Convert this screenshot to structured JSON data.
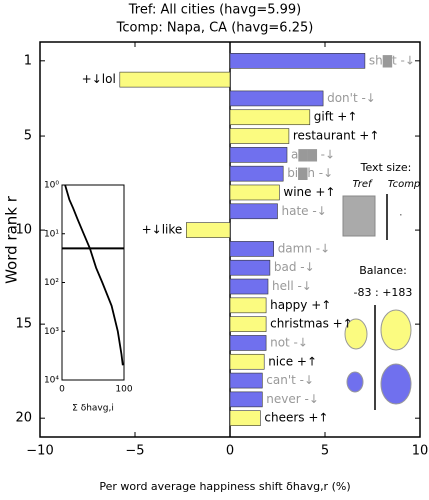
{
  "chart_data": {
    "type": "word-shift",
    "title": "Tref: All cities (havg=5.99)",
    "subtitle": "Tcomp: Napa, CA (havg=6.25)",
    "xlabel": "Per word average happiness shift δhavg,r (%)",
    "ylabel": "Word rank r",
    "categories": [
      1,
      2,
      3,
      4,
      5,
      6,
      7,
      8,
      9,
      10,
      11,
      12,
      13,
      14,
      15,
      16,
      17,
      18,
      19,
      20
    ],
    "word_labels": [
      "sh▇t -↓",
      "+↓lol",
      "don't -↓",
      "gift +↑",
      "restaurant +↑",
      "a▇▇ -↓",
      "bi▇h -↓",
      "wine +↑",
      "hate -↓",
      "+↓like",
      "damn -↓",
      "bad -↓",
      "hell -↓",
      "happy +↑",
      "christmas +↑",
      "not -↓",
      "nice +↑",
      "can't -↓",
      "never -↓",
      "cheers +↑"
    ],
    "values": [
      7.1,
      -5.8,
      4.9,
      4.2,
      3.1,
      3.0,
      2.8,
      2.6,
      2.5,
      -2.3,
      2.3,
      2.1,
      2.0,
      1.9,
      1.9,
      1.9,
      1.8,
      1.7,
      1.7,
      1.6
    ],
    "bar_colors": [
      "#7070ee",
      "#fbfb80",
      "#7070ee",
      "#fbfb80",
      "#fbfb80",
      "#7070ee",
      "#7070ee",
      "#fbfb80",
      "#7070ee",
      "#fbfb80",
      "#7070ee",
      "#7070ee",
      "#7070ee",
      "#fbfb80",
      "#fbfb80",
      "#7070ee",
      "#fbfb80",
      "#7070ee",
      "#7070ee",
      "#fbfb80"
    ],
    "label_colors": [
      "#999",
      "#000",
      "#999",
      "#000",
      "#000",
      "#999",
      "#999",
      "#000",
      "#999",
      "#000",
      "#999",
      "#999",
      "#999",
      "#000",
      "#000",
      "#999",
      "#000",
      "#999",
      "#999",
      "#000"
    ],
    "xlim": [
      -10,
      10
    ],
    "xticks": [
      {
        "value": -10,
        "label": "−10"
      },
      {
        "value": -5,
        "label": "−5"
      },
      0,
      5,
      10
    ],
    "ylim": [
      0,
      21
    ],
    "yticks": [
      1,
      5,
      10,
      15,
      20
    ],
    "text_size": {
      "title": "Text size:",
      "ref": "Tref",
      "comp": "Tcomp"
    },
    "balance": {
      "title": "Balance:",
      "label": "-83 : +183"
    },
    "inset": {
      "type": "line",
      "x": [
        5,
        12,
        18,
        25,
        35,
        45,
        55,
        65,
        80,
        90,
        96,
        98
      ],
      "y": [
        1,
        2,
        3,
        5,
        10,
        20,
        50,
        100,
        300,
        1000,
        3000,
        5000
      ],
      "xlim": [
        0,
        100
      ],
      "ylim": [
        1,
        10000
      ],
      "xticks": [
        0,
        100
      ],
      "yticks": [
        {
          "value": 1,
          "label": "10⁰"
        },
        {
          "value": 10,
          "label": "10¹"
        },
        {
          "value": 100,
          "label": "10²"
        },
        {
          "value": 1000,
          "label": "10³"
        },
        {
          "value": 10000,
          "label": "10⁴"
        }
      ],
      "marker_rank": 20,
      "xlabel": "Σ δhavg,i"
    }
  }
}
